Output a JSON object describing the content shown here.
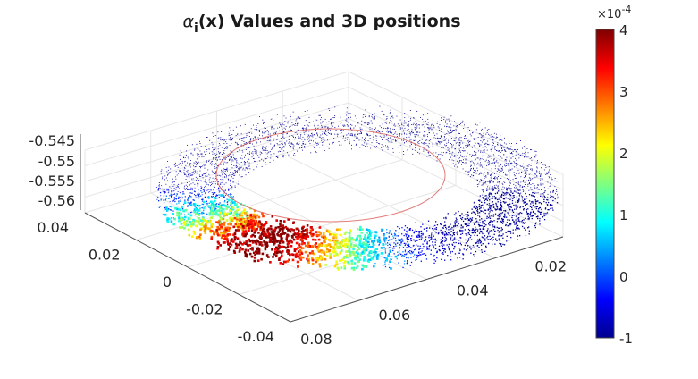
{
  "chart_data": {
    "type": "scatter",
    "subtype": "3d-scatter-colormapped",
    "title": {
      "symbol": "α",
      "subscript": "i",
      "rest": "(x) Values and 3D positions"
    },
    "axes": {
      "x": {
        "ticks": [
          "0.02",
          "0.04",
          "0.06",
          "0.08"
        ]
      },
      "y": {
        "ticks": [
          "0.04",
          "0.02",
          "0",
          "-0.02",
          "-0.04"
        ]
      },
      "z": {
        "ticks": [
          "-0.545",
          "-0.55",
          "-0.555",
          "-0.56"
        ]
      },
      "grid": true
    },
    "colorbar": {
      "colormap": "jet",
      "range": [
        -1,
        4
      ],
      "multiplier": {
        "base": "×10",
        "exponent": "-4"
      },
      "ticks": [
        "4",
        "3",
        "2",
        "1",
        "0",
        "-1"
      ],
      "location": "right"
    },
    "shape": "torus",
    "reference_curve": {
      "type": "circle",
      "color": "#d9534f"
    },
    "value_distribution": {
      "max_region": "front-left",
      "background_value": "-1"
    }
  }
}
